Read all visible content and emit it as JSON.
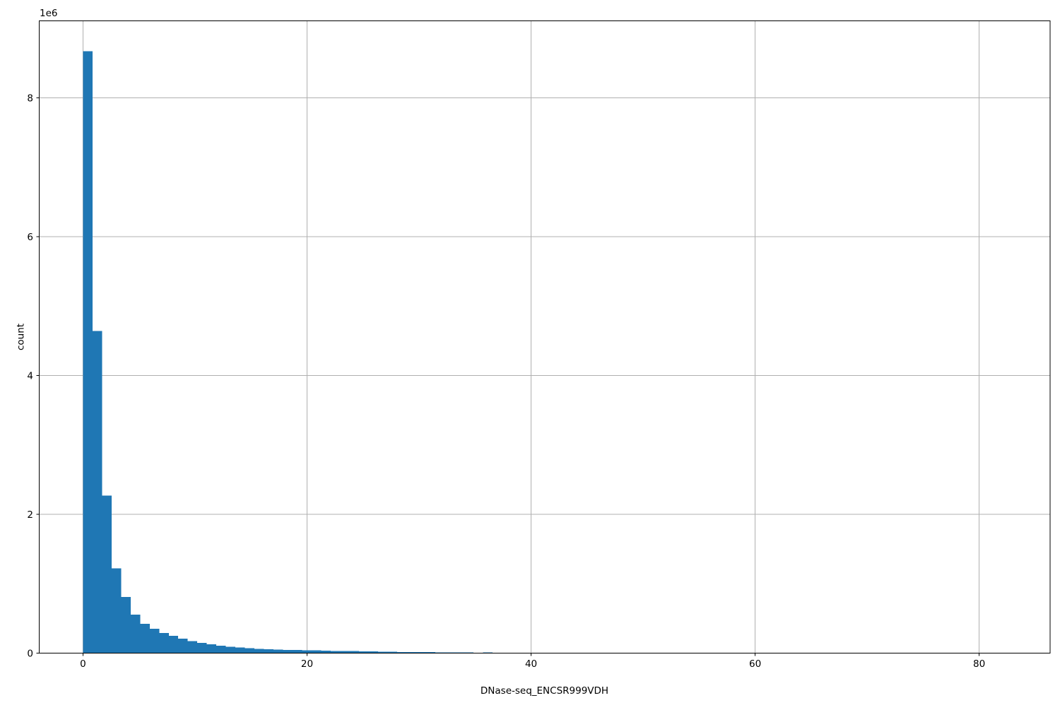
{
  "figure": {
    "background": "#ffffff"
  },
  "chart_data": {
    "type": "bar",
    "subtype": "histogram",
    "title": "",
    "xlabel": "DNase-seq_ENCSR999VDH",
    "ylabel": "count",
    "y_offset_text": "1e6",
    "x_tick_values": [
      0,
      20,
      40,
      60,
      80
    ],
    "x_tick_labels": [
      "0",
      "20",
      "40",
      "60",
      "80"
    ],
    "y_tick_values": [
      0,
      2000000,
      4000000,
      6000000,
      8000000
    ],
    "y_tick_labels": [
      "0",
      "2",
      "4",
      "6",
      "8"
    ],
    "xlim": [
      -3.91,
      86.33
    ],
    "ylim": [
      0,
      9110000
    ],
    "grid": true,
    "legend": null,
    "bar_color": "#1f77b4",
    "grid_color": "#b0b0b0",
    "spine_color": "#000000",
    "bin_start": 0,
    "bin_width": 0.85,
    "counts": [
      8670000,
      4640000,
      2270000,
      1220000,
      810000,
      555000,
      420000,
      351000,
      290000,
      249000,
      209000,
      175000,
      148000,
      127000,
      107000,
      94000,
      79000,
      69000,
      62000,
      56000,
      50000,
      47000,
      44000,
      42000,
      39000,
      36000,
      33000,
      30000,
      28000,
      26000,
      24000,
      22000,
      19000,
      17000,
      16000,
      14000,
      13000,
      12000,
      11000,
      10000,
      9000,
      0,
      12000
    ]
  }
}
